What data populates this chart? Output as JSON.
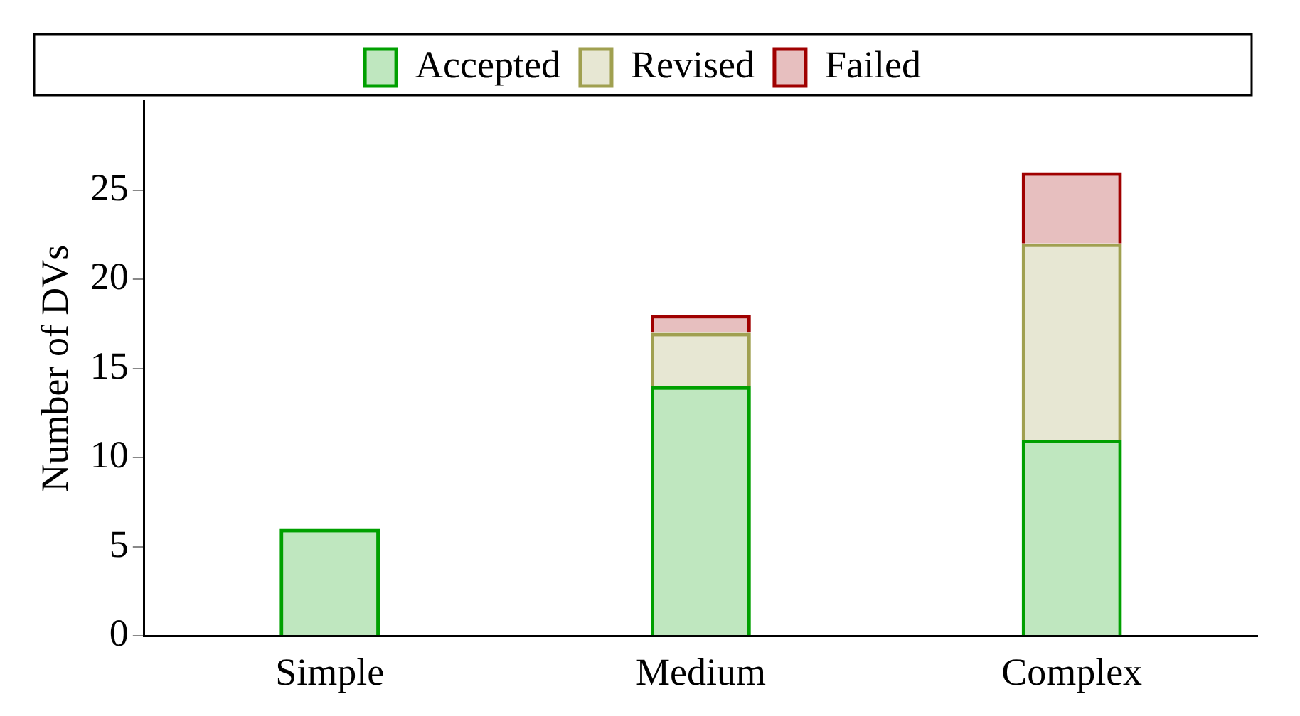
{
  "chart_data": {
    "type": "bar",
    "stacked": true,
    "ylabel": "Number of DVs",
    "categories": [
      "Simple",
      "Medium",
      "Complex"
    ],
    "series": [
      {
        "name": "Accepted",
        "color": "#00a000",
        "values": [
          6,
          14,
          11
        ]
      },
      {
        "name": "Revised",
        "color": "#a0a050",
        "values": [
          null,
          3,
          11
        ]
      },
      {
        "name": "Failed",
        "color": "#a00000",
        "values": [
          null,
          1,
          4
        ]
      }
    ],
    "ylim": [
      0,
      30
    ],
    "yticks": [
      0,
      5,
      10,
      15,
      20,
      25
    ],
    "grid": false,
    "legend": "top"
  }
}
